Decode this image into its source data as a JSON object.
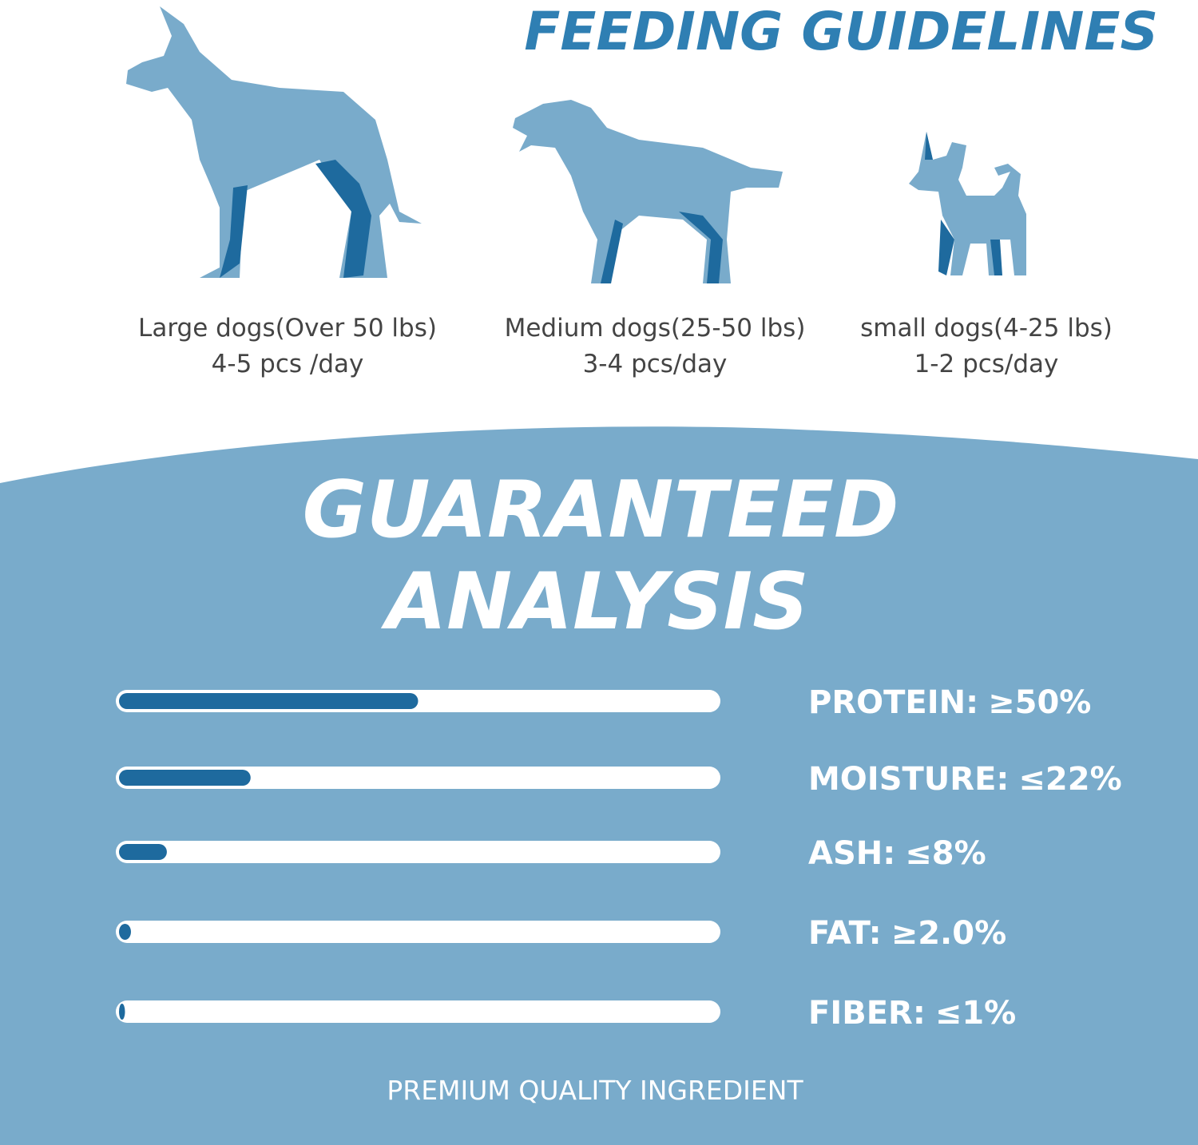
{
  "header": {
    "title": "FEEDING GUIDELINES"
  },
  "dogs": [
    {
      "label": "Large dogs(Over 50 lbs)",
      "dosage": "4-5 pcs /day"
    },
    {
      "label": "Medium dogs(25-50 lbs)",
      "dosage": "3-4 pcs/day"
    },
    {
      "label": "small dogs(4-25 lbs)",
      "dosage": "1-2 pcs/day"
    }
  ],
  "analysis": {
    "title_lines": [
      "GUARANTEED",
      "ANALYSIS"
    ],
    "xlim": [
      0,
      100
    ],
    "items": [
      {
        "name": "PROTEIN:",
        "value": 50,
        "value_label": "≥50%"
      },
      {
        "name": "MOISTURE:",
        "value": 22,
        "value_label": "≤22%"
      },
      {
        "name": "ASH:",
        "value": 8,
        "value_label": "≤8%"
      },
      {
        "name": "FAT:",
        "value": 2.0,
        "value_label": "≥2.0%"
      },
      {
        "name": "FIBER:",
        "value": 1,
        "value_label": "≤1%"
      }
    ],
    "footer": "PREMIUM QUALITY INGREDIENT"
  }
}
